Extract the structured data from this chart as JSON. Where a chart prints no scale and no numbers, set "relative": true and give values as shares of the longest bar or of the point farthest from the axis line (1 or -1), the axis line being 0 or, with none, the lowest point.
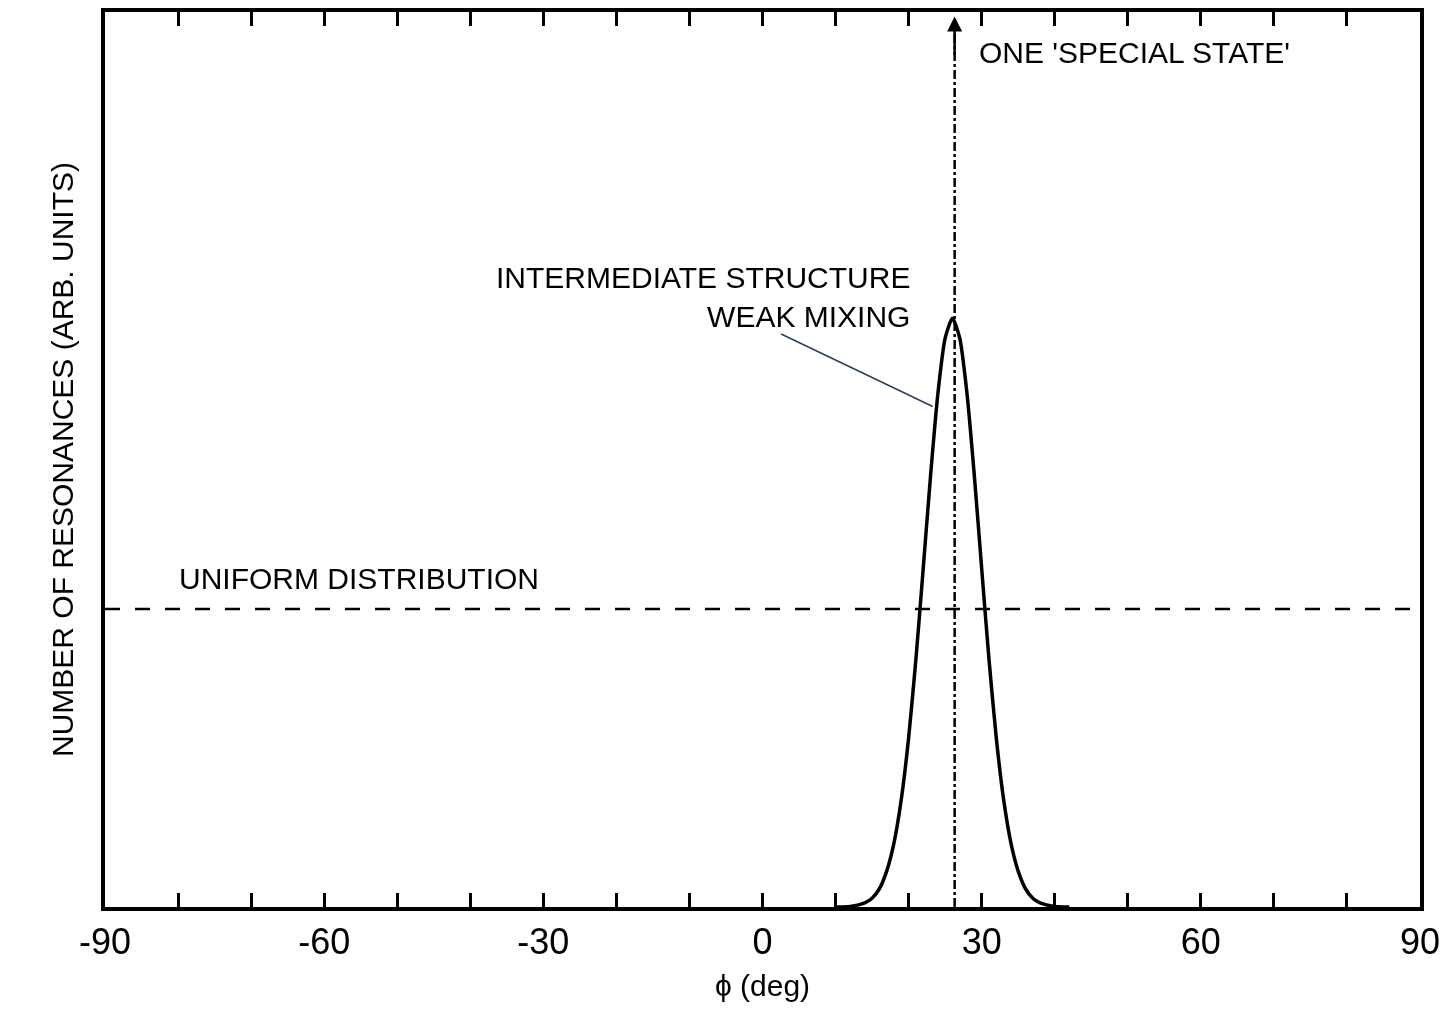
{
  "chart_data": {
    "type": "line",
    "relative": true,
    "xlabel": "ϕ (deg)",
    "ylabel": "NUMBER OF RESONANCES (ARB. UNITS)",
    "xlim": [
      -90,
      90
    ],
    "xticks": [
      -90,
      {
        "value": -80,
        "label": null
      },
      {
        "value": -70,
        "label": null
      },
      -60,
      {
        "value": -50,
        "label": null
      },
      {
        "value": -40,
        "label": null
      },
      -30,
      {
        "value": -20,
        "label": null
      },
      {
        "value": -10,
        "label": null
      },
      0,
      {
        "value": 10,
        "label": null
      },
      {
        "value": 20,
        "label": null
      },
      30,
      {
        "value": 40,
        "label": null
      },
      {
        "value": 50,
        "label": null
      },
      60,
      {
        "value": 70,
        "label": null
      },
      {
        "value": 80,
        "label": null
      },
      90
    ],
    "series": [
      {
        "color": "#000000",
        "x": [
          10,
          12,
          14,
          15,
          16,
          17,
          18,
          19,
          20,
          21,
          22,
          23,
          24,
          25,
          26,
          27,
          28,
          29,
          30,
          31,
          32,
          33,
          34,
          35,
          36,
          37,
          38,
          40,
          42
        ],
        "values": [
          0,
          0.001,
          0.007,
          0.015,
          0.031,
          0.061,
          0.109,
          0.183,
          0.287,
          0.421,
          0.575,
          0.732,
          0.871,
          0.966,
          1,
          0.966,
          0.871,
          0.732,
          0.575,
          0.421,
          0.287,
          0.183,
          0.109,
          0.061,
          0.031,
          0.015,
          0.007,
          0.001,
          0
        ]
      }
    ],
    "ref_lines": [
      {
        "axis": "y",
        "value": 0.506,
        "label": "UNIFORM DISTRIBUTION",
        "line_style": "dashed",
        "color": "#000000"
      },
      {
        "axis": "x",
        "value": 26.3,
        "label": "ONE 'SPECIAL STATE'",
        "line_style": "dashdot",
        "color": "#000000"
      }
    ],
    "annotations": [
      {
        "text": "INTERMEDIATE STRUCTURE\nWEAK MIXING",
        "x": 23.3,
        "y": 0.85
      }
    ]
  }
}
